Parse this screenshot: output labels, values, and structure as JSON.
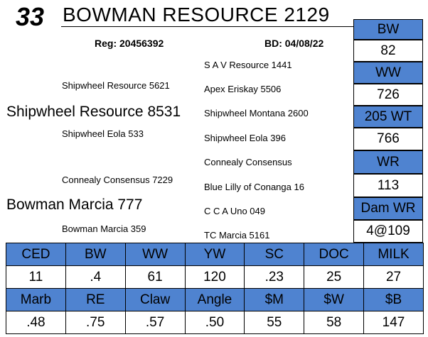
{
  "lot_number": "33",
  "animal_name": "BOWMAN RESOURCE 2129",
  "registration": "Reg: 20456392",
  "birth_date": "BD: 04/08/22",
  "pedigree": {
    "sire": "Shipwheel Resource 8531",
    "sire_sire": "Shipwheel Resource 5621",
    "sire_dam": "Shipwheel Eola 533",
    "sss": "S A V Resource 1441",
    "ssd": "Apex Eriskay 5506",
    "sds": "Shipwheel Montana 2600",
    "sdd": "Shipwheel Eola 396",
    "dam": "Bowman Marcia 777",
    "dam_sire": "Connealy Consensus 7229",
    "dam_dam": "Bowman Marcia 359",
    "dss": "Connealy Consensus",
    "dsd": "Blue Lilly of Conanga 16",
    "dds": "C C A Uno 049",
    "ddd": "TC Marcia 5161"
  },
  "side_stats": [
    {
      "label": "BW",
      "value": "82"
    },
    {
      "label": "WW",
      "value": "726"
    },
    {
      "label": "205 WT",
      "value": "766"
    },
    {
      "label": "WR",
      "value": "113"
    },
    {
      "label": "Dam WR",
      "value": "4@109"
    }
  ],
  "epd_row1": {
    "headers": [
      "CED",
      "BW",
      "WW",
      "YW",
      "SC",
      "DOC",
      "MILK"
    ],
    "values": [
      "11",
      ".4",
      "61",
      "120",
      ".23",
      "25",
      "27"
    ]
  },
  "epd_row2": {
    "headers": [
      "Marb",
      "RE",
      "Claw",
      "Angle",
      "$M",
      "$W",
      "$B"
    ],
    "values": [
      ".48",
      ".75",
      ".57",
      ".50",
      "55",
      "58",
      "147"
    ]
  },
  "colors": {
    "header_blue": "#4f83d0"
  }
}
